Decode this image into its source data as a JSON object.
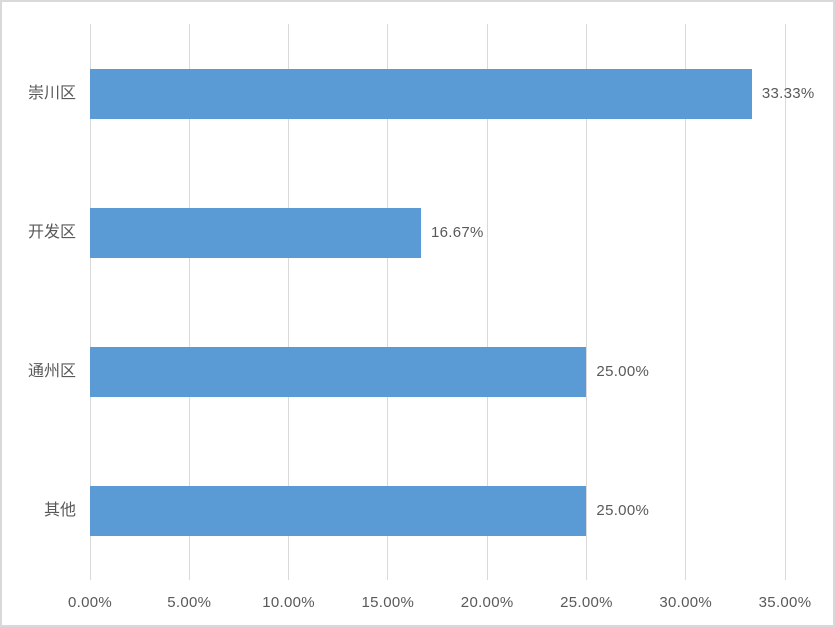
{
  "chart_data": {
    "type": "bar",
    "orientation": "horizontal",
    "title": "",
    "categories": [
      "崇川区",
      "开发区",
      "通州区",
      "其他"
    ],
    "values": [
      33.33,
      16.67,
      25.0,
      25.0
    ],
    "data_labels": [
      "33.33%",
      "16.67%",
      "25.00%",
      "25.00%"
    ],
    "x_ticks": [
      {
        "value": 0,
        "label": "0.00%"
      },
      {
        "value": 5,
        "label": "5.00%"
      },
      {
        "value": 10,
        "label": "10.00%"
      },
      {
        "value": 15,
        "label": "15.00%"
      },
      {
        "value": 20,
        "label": "20.00%"
      },
      {
        "value": 25,
        "label": "25.00%"
      },
      {
        "value": 30,
        "label": "30.00%"
      },
      {
        "value": 35,
        "label": "35.00%"
      }
    ],
    "xlim": [
      0,
      35
    ],
    "grid": true,
    "legend_position": "none",
    "colors": {
      "bar": "#5b9bd5",
      "gridline": "#d9d9d9",
      "border": "#d9d9d9",
      "text": "#595959",
      "background": "#ffffff"
    }
  }
}
